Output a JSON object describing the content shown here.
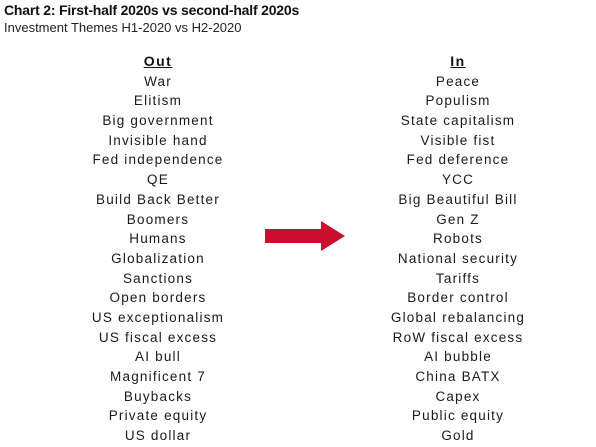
{
  "title": "Chart 2: First-half 2020s vs second-half 2020s",
  "subtitle": "Investment Themes H1-2020 vs H2-2020",
  "out_column": {
    "header": "Out",
    "items": [
      "War",
      "Elitism",
      "Big government",
      "Invisible hand",
      "Fed independence",
      "QE",
      "Build Back Better",
      "Boomers",
      "Humans",
      "Globalization",
      "Sanctions",
      "Open borders",
      "US exceptionalism",
      "US fiscal excess",
      "AI bull",
      "Magnificent 7",
      "Buybacks",
      "Private equity",
      "US dollar"
    ]
  },
  "in_column": {
    "header": "In",
    "items": [
      "Peace",
      "Populism",
      "State capitalism",
      "Visible fist",
      "Fed deference",
      "YCC",
      "Big Beautiful Bill",
      "Gen Z",
      "Robots",
      "National security",
      "Tariffs",
      "Border control",
      "Global rebalancing",
      "RoW fiscal excess",
      "AI bubble",
      "China BATX",
      "Capex",
      "Public equity",
      "Gold"
    ]
  },
  "arrow": {
    "icon": "right-arrow-icon",
    "color": "#c8102e"
  }
}
